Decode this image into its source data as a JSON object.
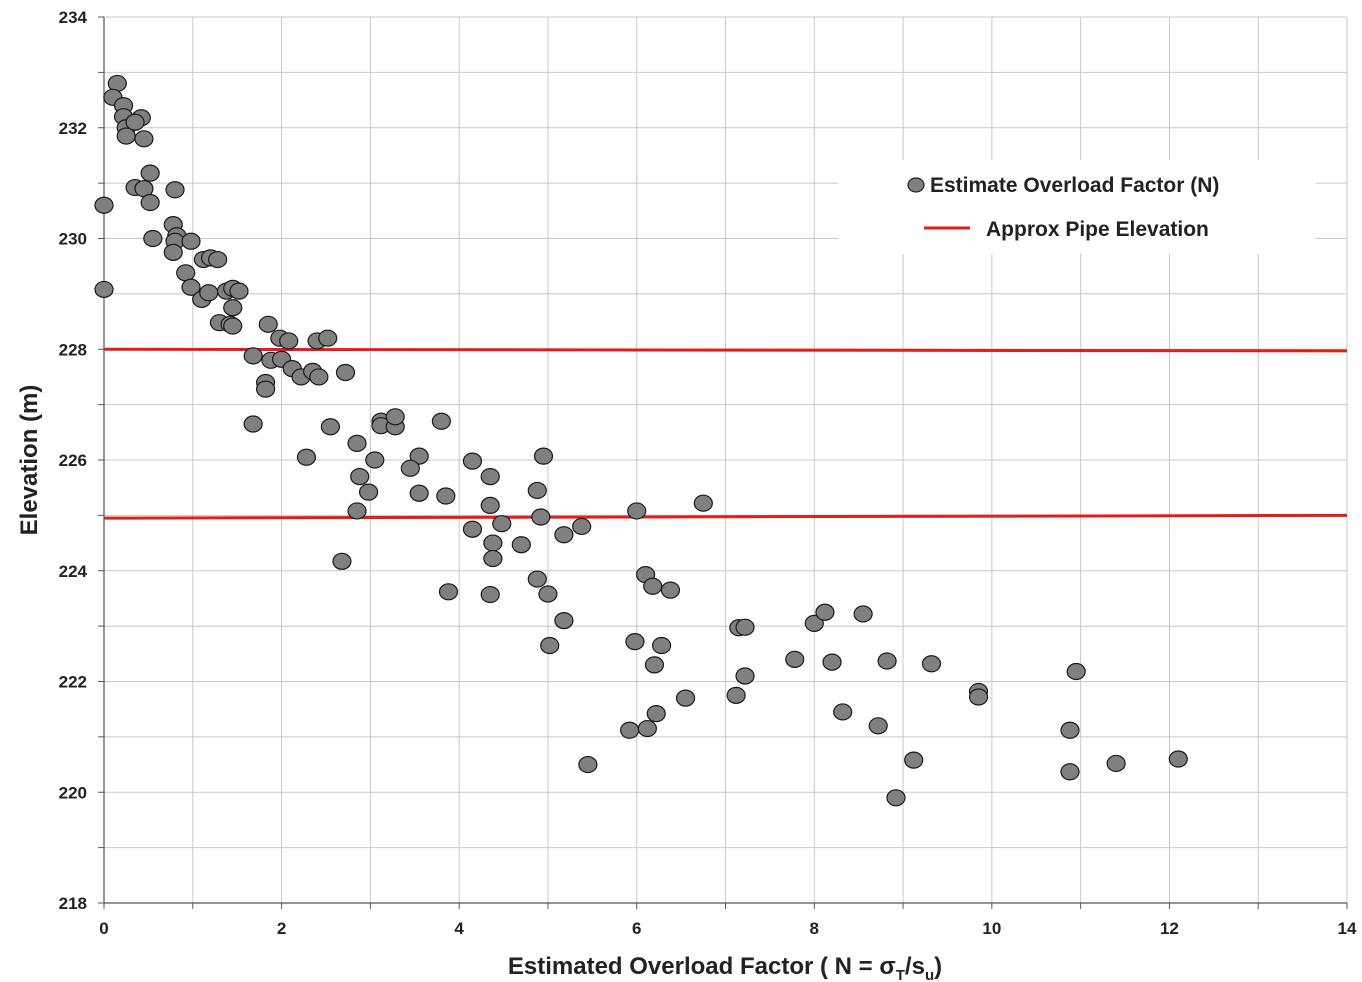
{
  "chart_data": {
    "type": "scatter",
    "xlabel_main": "Estimated Overload Factor ( N = σ",
    "xlabel_sub1": "T",
    "xlabel_mid": "/s",
    "xlabel_sub2": "u",
    "xlabel_end": ")",
    "ylabel": "Elevation (m)",
    "xlim": [
      0,
      14
    ],
    "ylim": [
      218,
      234
    ],
    "x_ticks": [
      "0",
      "2",
      "4",
      "6",
      "8",
      "10",
      "12",
      "14"
    ],
    "y_ticks": [
      "218",
      "220",
      "222",
      "224",
      "226",
      "228",
      "230",
      "232",
      "234"
    ],
    "grid": true,
    "legend_position": "top-right",
    "colors": {
      "points": "#808080",
      "line": "#e01e1e"
    },
    "series": [
      {
        "name": "Estimate Overload Factor (N)",
        "type": "scatter",
        "points": [
          [
            0.15,
            232.8
          ],
          [
            0.1,
            232.55
          ],
          [
            0.22,
            232.4
          ],
          [
            0.22,
            232.2
          ],
          [
            0.25,
            232.0
          ],
          [
            0.42,
            232.18
          ],
          [
            0.35,
            232.1
          ],
          [
            0.25,
            231.85
          ],
          [
            0.45,
            231.8
          ],
          [
            0.0,
            230.6
          ],
          [
            0.35,
            230.92
          ],
          [
            0.45,
            230.9
          ],
          [
            0.8,
            230.88
          ],
          [
            0.52,
            231.18
          ],
          [
            0.52,
            230.65
          ],
          [
            0.78,
            230.25
          ],
          [
            0.82,
            230.05
          ],
          [
            0.55,
            230.0
          ],
          [
            0.8,
            229.95
          ],
          [
            0.98,
            229.95
          ],
          [
            0.78,
            229.75
          ],
          [
            1.12,
            229.62
          ],
          [
            1.2,
            229.65
          ],
          [
            1.28,
            229.62
          ],
          [
            0.92,
            229.38
          ],
          [
            0.98,
            229.12
          ],
          [
            1.1,
            228.9
          ],
          [
            1.18,
            229.02
          ],
          [
            1.38,
            229.05
          ],
          [
            1.45,
            229.1
          ],
          [
            1.52,
            229.05
          ],
          [
            1.45,
            228.75
          ],
          [
            1.3,
            228.48
          ],
          [
            1.42,
            228.45
          ],
          [
            1.45,
            228.42
          ],
          [
            0.0,
            229.08
          ],
          [
            1.85,
            228.45
          ],
          [
            1.98,
            228.2
          ],
          [
            2.08,
            228.15
          ],
          [
            2.4,
            228.15
          ],
          [
            2.52,
            228.2
          ],
          [
            1.68,
            227.88
          ],
          [
            1.88,
            227.8
          ],
          [
            2.0,
            227.82
          ],
          [
            2.12,
            227.65
          ],
          [
            2.22,
            227.5
          ],
          [
            2.35,
            227.6
          ],
          [
            2.42,
            227.5
          ],
          [
            2.72,
            227.58
          ],
          [
            1.82,
            227.4
          ],
          [
            1.82,
            227.28
          ],
          [
            1.68,
            226.65
          ],
          [
            2.55,
            226.6
          ],
          [
            3.12,
            226.7
          ],
          [
            3.12,
            226.62
          ],
          [
            3.28,
            226.6
          ],
          [
            3.28,
            226.78
          ],
          [
            3.8,
            226.7
          ],
          [
            2.85,
            226.3
          ],
          [
            2.28,
            226.05
          ],
          [
            3.05,
            226.0
          ],
          [
            3.55,
            226.07
          ],
          [
            3.45,
            225.85
          ],
          [
            2.88,
            225.7
          ],
          [
            2.98,
            225.42
          ],
          [
            3.55,
            225.4
          ],
          [
            3.85,
            225.35
          ],
          [
            2.85,
            225.08
          ],
          [
            4.15,
            225.98
          ],
          [
            4.35,
            225.7
          ],
          [
            4.95,
            226.07
          ],
          [
            4.88,
            225.45
          ],
          [
            4.35,
            225.18
          ],
          [
            4.15,
            224.75
          ],
          [
            4.48,
            224.85
          ],
          [
            4.92,
            224.97
          ],
          [
            4.38,
            224.5
          ],
          [
            4.7,
            224.47
          ],
          [
            5.18,
            224.65
          ],
          [
            5.38,
            224.8
          ],
          [
            4.38,
            224.22
          ],
          [
            2.68,
            224.17
          ],
          [
            3.88,
            223.62
          ],
          [
            4.35,
            223.57
          ],
          [
            4.88,
            223.85
          ],
          [
            5.0,
            223.58
          ],
          [
            5.18,
            223.1
          ],
          [
            5.02,
            222.65
          ],
          [
            6.0,
            225.08
          ],
          [
            6.75,
            225.22
          ],
          [
            6.1,
            223.93
          ],
          [
            6.18,
            223.72
          ],
          [
            6.38,
            223.65
          ],
          [
            5.98,
            222.72
          ],
          [
            6.28,
            222.65
          ],
          [
            6.2,
            222.3
          ],
          [
            6.22,
            221.42
          ],
          [
            5.92,
            221.12
          ],
          [
            6.12,
            221.15
          ],
          [
            5.45,
            220.5
          ],
          [
            6.55,
            221.7
          ],
          [
            7.15,
            222.97
          ],
          [
            7.22,
            222.98
          ],
          [
            7.22,
            222.1
          ],
          [
            7.12,
            221.75
          ],
          [
            7.78,
            222.4
          ],
          [
            8.0,
            223.05
          ],
          [
            8.12,
            223.25
          ],
          [
            8.55,
            223.22
          ],
          [
            8.2,
            222.35
          ],
          [
            8.82,
            222.37
          ],
          [
            9.32,
            222.32
          ],
          [
            8.32,
            221.45
          ],
          [
            8.72,
            221.2
          ],
          [
            9.12,
            220.58
          ],
          [
            8.92,
            219.9
          ],
          [
            9.85,
            221.82
          ],
          [
            9.85,
            221.72
          ],
          [
            10.95,
            222.18
          ],
          [
            10.88,
            221.12
          ],
          [
            10.88,
            220.37
          ],
          [
            11.4,
            220.52
          ],
          [
            12.1,
            220.6
          ]
        ]
      },
      {
        "name": "Approx Pipe Elevation",
        "type": "line",
        "lines": [
          [
            [
              0,
              228.0
            ],
            [
              14,
              227.97
            ]
          ],
          [
            [
              0,
              224.95
            ],
            [
              14,
              225.0
            ]
          ]
        ]
      }
    ]
  }
}
